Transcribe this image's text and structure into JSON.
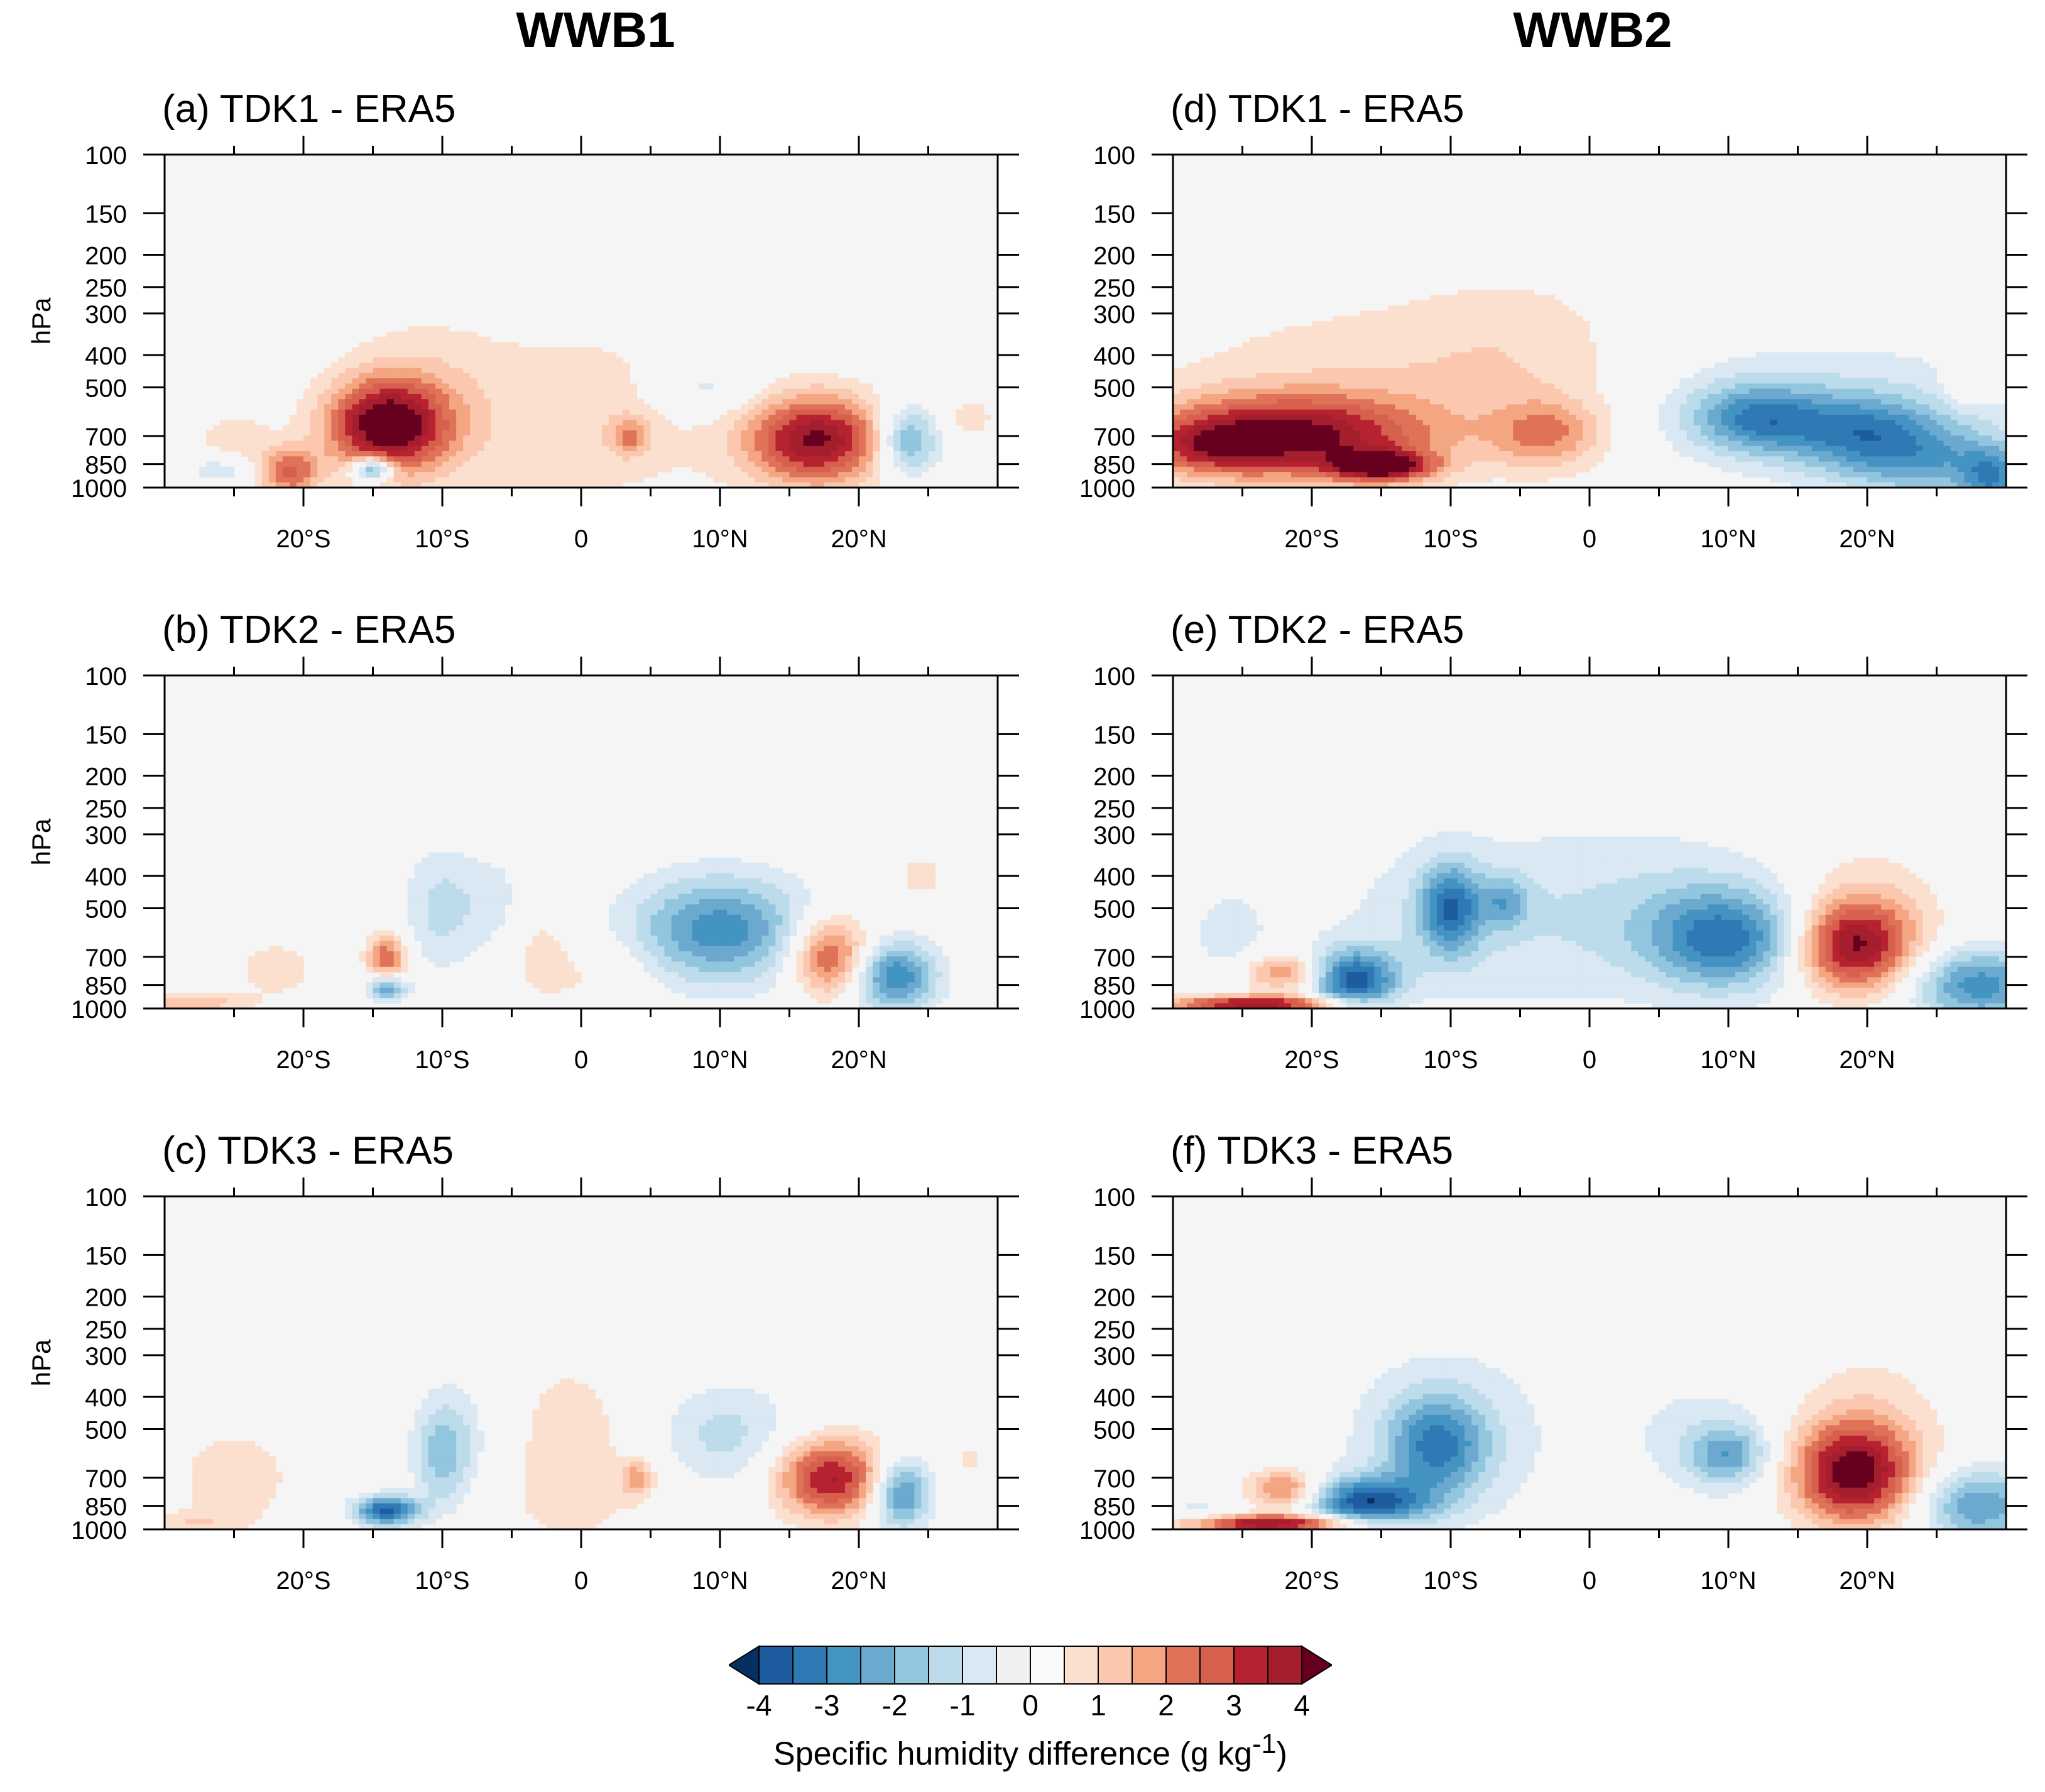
{
  "figure": {
    "columns": [
      "WWB1",
      "WWB2"
    ],
    "colorbar": {
      "label": "Specific humidity difference (g kg",
      "label_sup": "-1",
      "label_close": ")",
      "tick_labels": [
        "-4",
        "-3",
        "-2",
        "-1",
        "0",
        "1",
        "2",
        "3",
        "4"
      ],
      "levels": [
        -4,
        -3.5,
        -3,
        -2.5,
        -2,
        -1.5,
        -1,
        -0.5,
        0,
        0.5,
        1,
        1.5,
        2,
        2.5,
        3,
        3.5,
        4
      ],
      "colors": [
        "#053061",
        "#1c5c9f",
        "#2f79b5",
        "#4393c3",
        "#6ca9cf",
        "#92c5de",
        "#bcdbeb",
        "#d9e8f2",
        "#f0f0f0",
        "#fafafa",
        "#fbe0d0",
        "#fbc8af",
        "#f4a582",
        "#e07259",
        "#d6604d",
        "#b72230",
        "#a51e2d",
        "#67001f"
      ],
      "extend": "both"
    }
  },
  "chart_data": [
    {
      "type": "heatmap",
      "panel": "a",
      "column": "WWB1",
      "title": "(a) TDK1 - ERA5",
      "ylabel": "hPa",
      "xlabel": "",
      "yticks": [
        100,
        150,
        200,
        250,
        300,
        400,
        500,
        700,
        850,
        1000
      ],
      "xticks": [
        "20°S",
        "10°S",
        "0",
        "10°N",
        "20°N"
      ],
      "xticks_values": [
        -20,
        -10,
        0,
        10,
        20
      ],
      "xlim": [
        -30,
        30
      ],
      "ylim": [
        1000,
        100
      ],
      "features": [
        {
          "lat": -14,
          "p": 650,
          "v": 4.2,
          "sx": 3.0,
          "sy": 1.8
        },
        {
          "lat": -12,
          "p": 560,
          "v": 0.7,
          "sx": 4.0,
          "sy": 3.5
        },
        {
          "lat": -21,
          "p": 900,
          "v": 2.5,
          "sx": 1.5,
          "sy": 1.0
        },
        {
          "lat": -25,
          "p": 720,
          "v": 0.8,
          "sx": 2.0,
          "sy": 1.2
        },
        {
          "lat": -15,
          "p": 880,
          "v": -3.5,
          "sx": 1.0,
          "sy": 0.5
        },
        {
          "lat": -26,
          "p": 880,
          "v": -1.0,
          "sx": 1.6,
          "sy": 0.6
        },
        {
          "lat": 0,
          "p": 620,
          "v": 0.75,
          "sx": 9.0,
          "sy": 4.5
        },
        {
          "lat": 3.5,
          "p": 700,
          "v": 1.6,
          "sx": 1.0,
          "sy": 0.8
        },
        {
          "lat": 9,
          "p": 500,
          "v": -1.0,
          "sx": 2.6,
          "sy": 1.2
        },
        {
          "lat": 17,
          "p": 720,
          "v": 4.0,
          "sx": 3.5,
          "sy": 1.8
        },
        {
          "lat": 23.5,
          "p": 720,
          "v": -2.5,
          "sx": 1.6,
          "sy": 1.4
        },
        {
          "lat": 28,
          "p": 620,
          "v": 0.7,
          "sx": 1.5,
          "sy": 1.0
        }
      ]
    },
    {
      "type": "heatmap",
      "panel": "b",
      "column": "WWB1",
      "title": "(b) TDK2 - ERA5",
      "ylabel": "hPa",
      "xlabel": "",
      "yticks": [
        100,
        150,
        200,
        250,
        300,
        400,
        500,
        700,
        850,
        1000
      ],
      "xticks": [
        "20°S",
        "10°S",
        "0",
        "10°N",
        "20°N"
      ],
      "xticks_values": [
        -20,
        -10,
        0,
        10,
        20
      ],
      "xlim": [
        -30,
        30
      ],
      "ylim": [
        1000,
        100
      ],
      "features": [
        {
          "lat": -14,
          "p": 700,
          "v": 2.5,
          "sx": 1.0,
          "sy": 0.9
        },
        {
          "lat": -14,
          "p": 870,
          "v": -2.5,
          "sx": 1.0,
          "sy": 0.5
        },
        {
          "lat": -10,
          "p": 500,
          "v": -1.2,
          "sx": 2.0,
          "sy": 2.5
        },
        {
          "lat": -6,
          "p": 480,
          "v": -0.7,
          "sx": 1.5,
          "sy": 2.0
        },
        {
          "lat": -28,
          "p": 960,
          "v": 1.5,
          "sx": 2.5,
          "sy": 0.4
        },
        {
          "lat": -22,
          "p": 760,
          "v": 0.7,
          "sx": 2.5,
          "sy": 1.5
        },
        {
          "lat": -3,
          "p": 680,
          "v": 0.65,
          "sx": 2.0,
          "sy": 2.5
        },
        {
          "lat": 2,
          "p": 800,
          "v": 0.6,
          "sx": 2.5,
          "sy": 1.5
        },
        {
          "lat": 10,
          "p": 580,
          "v": -2.8,
          "sx": 4.5,
          "sy": 2.2
        },
        {
          "lat": 18,
          "p": 700,
          "v": 3.0,
          "sx": 2.0,
          "sy": 1.6
        },
        {
          "lat": 22.5,
          "p": 800,
          "v": -3.0,
          "sx": 2.2,
          "sy": 1.4
        },
        {
          "lat": 24.5,
          "p": 400,
          "v": 0.7,
          "sx": 1.5,
          "sy": 1.0
        }
      ]
    },
    {
      "type": "heatmap",
      "panel": "c",
      "column": "WWB1",
      "title": "(c) TDK3 - ERA5",
      "ylabel": "hPa",
      "xlabel": "",
      "yticks": [
        100,
        150,
        200,
        250,
        300,
        400,
        500,
        700,
        850,
        1000
      ],
      "xticks": [
        "20°S",
        "10°S",
        "0",
        "10°N",
        "20°N"
      ],
      "xticks_values": [
        -20,
        -10,
        0,
        10,
        20
      ],
      "xlim": [
        -30,
        30
      ],
      "ylim": [
        1000,
        100
      ],
      "features": [
        {
          "lat": -14,
          "p": 880,
          "v": -3.8,
          "sx": 1.6,
          "sy": 0.6
        },
        {
          "lat": -10,
          "p": 600,
          "v": -1.7,
          "sx": 1.5,
          "sy": 2.2
        },
        {
          "lat": -8,
          "p": 500,
          "v": -0.7,
          "sx": 2.5,
          "sy": 3.0
        },
        {
          "lat": -25,
          "p": 700,
          "v": 0.9,
          "sx": 3.0,
          "sy": 2.0
        },
        {
          "lat": -28,
          "p": 960,
          "v": 0.8,
          "sx": 2.5,
          "sy": 0.5
        },
        {
          "lat": -1,
          "p": 600,
          "v": 0.75,
          "sx": 6.0,
          "sy": 5.0
        },
        {
          "lat": 4,
          "p": 700,
          "v": 1.6,
          "sx": 0.8,
          "sy": 0.7
        },
        {
          "lat": 10,
          "p": 520,
          "v": -1.3,
          "sx": 3.8,
          "sy": 2.2
        },
        {
          "lat": 18,
          "p": 700,
          "v": 3.6,
          "sx": 2.8,
          "sy": 1.6
        },
        {
          "lat": 23,
          "p": 780,
          "v": -3.0,
          "sx": 1.5,
          "sy": 1.4
        },
        {
          "lat": 28,
          "p": 620,
          "v": 0.6,
          "sx": 1.2,
          "sy": 0.8
        }
      ]
    },
    {
      "type": "heatmap",
      "panel": "d",
      "column": "WWB2",
      "title": "(d) TDK1 - ERA5",
      "ylabel": "",
      "xlabel": "",
      "yticks": [
        100,
        150,
        200,
        250,
        300,
        400,
        500,
        700,
        850,
        1000
      ],
      "xticks": [
        "20°S",
        "10°S",
        "0",
        "10°N",
        "20°N"
      ],
      "xticks_values": [
        -20,
        -10,
        0,
        10,
        20
      ],
      "xlim": [
        -30,
        30
      ],
      "ylim": [
        1000,
        100
      ],
      "features": [
        {
          "lat": -22,
          "p": 700,
          "v": 3.8,
          "sx": 7.0,
          "sy": 1.6
        },
        {
          "lat": -27,
          "p": 760,
          "v": 1.5,
          "sx": 3.0,
          "sy": 1.0
        },
        {
          "lat": -15,
          "p": 860,
          "v": 4.0,
          "sx": 2.5,
          "sy": 0.6
        },
        {
          "lat": -18,
          "p": 520,
          "v": 0.8,
          "sx": 10.0,
          "sy": 4.0
        },
        {
          "lat": -5,
          "p": 400,
          "v": 0.7,
          "sx": 6.0,
          "sy": 3.5
        },
        {
          "lat": -3,
          "p": 690,
          "v": 1.8,
          "sx": 2.8,
          "sy": 1.4
        },
        {
          "lat": 12,
          "p": 620,
          "v": -2.5,
          "sx": 3.5,
          "sy": 1.4
        },
        {
          "lat": 20,
          "p": 680,
          "v": -2.2,
          "sx": 4.0,
          "sy": 1.5
        },
        {
          "lat": 25,
          "p": 850,
          "v": -1.7,
          "sx": 5.0,
          "sy": 1.5
        },
        {
          "lat": 29,
          "p": 950,
          "v": -2.0,
          "sx": 1.5,
          "sy": 1.2
        },
        {
          "lat": 18,
          "p": 560,
          "v": -0.8,
          "sx": 10.0,
          "sy": 3.0
        },
        {
          "lat": 27,
          "p": 500,
          "v": 0.8,
          "sx": 1.2,
          "sy": 0.8
        }
      ]
    },
    {
      "type": "heatmap",
      "panel": "e",
      "column": "WWB2",
      "title": "(e) TDK2 - ERA5",
      "ylabel": "",
      "xlabel": "",
      "yticks": [
        100,
        150,
        200,
        250,
        300,
        400,
        500,
        700,
        850,
        1000
      ],
      "xticks": [
        "20°S",
        "10°S",
        "0",
        "10°N",
        "20°N"
      ],
      "xticks_values": [
        -20,
        -10,
        0,
        10,
        20
      ],
      "xlim": [
        -30,
        30
      ],
      "ylim": [
        1000,
        100
      ],
      "features": [
        {
          "lat": -24,
          "p": 970,
          "v": 4.0,
          "sx": 4.5,
          "sy": 0.35
        },
        {
          "lat": -22,
          "p": 780,
          "v": 2.2,
          "sx": 2.0,
          "sy": 0.8
        },
        {
          "lat": -17,
          "p": 820,
          "v": -3.5,
          "sx": 2.2,
          "sy": 1.2
        },
        {
          "lat": -10,
          "p": 500,
          "v": -2.8,
          "sx": 1.6,
          "sy": 1.8
        },
        {
          "lat": -6,
          "p": 480,
          "v": -1.5,
          "sx": 1.2,
          "sy": 1.0
        },
        {
          "lat": -9,
          "p": 560,
          "v": -0.8,
          "sx": 8.0,
          "sy": 4.0
        },
        {
          "lat": 10,
          "p": 620,
          "v": -2.9,
          "sx": 4.0,
          "sy": 2.0
        },
        {
          "lat": 5,
          "p": 500,
          "v": -0.8,
          "sx": 7.0,
          "sy": 3.5
        },
        {
          "lat": 19,
          "p": 650,
          "v": 3.8,
          "sx": 3.0,
          "sy": 1.8
        },
        {
          "lat": 20,
          "p": 500,
          "v": 0.8,
          "sx": 4.0,
          "sy": 3.0
        },
        {
          "lat": 28,
          "p": 850,
          "v": -2.8,
          "sx": 3.5,
          "sy": 1.5
        },
        {
          "lat": -26,
          "p": 600,
          "v": -0.7,
          "sx": 2.0,
          "sy": 2.0
        }
      ]
    },
    {
      "type": "heatmap",
      "panel": "f",
      "column": "WWB2",
      "title": "(f) TDK3 - ERA5",
      "ylabel": "",
      "xlabel": "",
      "yticks": [
        100,
        150,
        200,
        250,
        300,
        400,
        500,
        700,
        850,
        1000
      ],
      "xticks": [
        "20°S",
        "10°S",
        "0",
        "10°N",
        "20°N"
      ],
      "xticks_values": [
        -20,
        -10,
        0,
        10,
        20
      ],
      "xlim": [
        -30,
        30
      ],
      "ylim": [
        1000,
        100
      ],
      "features": [
        {
          "lat": -23,
          "p": 960,
          "v": 4.2,
          "sx": 4.5,
          "sy": 0.35
        },
        {
          "lat": -22,
          "p": 760,
          "v": 2.4,
          "sx": 1.8,
          "sy": 0.8
        },
        {
          "lat": -16,
          "p": 830,
          "v": -3.6,
          "sx": 3.0,
          "sy": 1.0
        },
        {
          "lat": -11,
          "p": 560,
          "v": -2.6,
          "sx": 2.5,
          "sy": 2.0
        },
        {
          "lat": -10,
          "p": 520,
          "v": -0.8,
          "sx": 6.0,
          "sy": 4.0
        },
        {
          "lat": 10,
          "p": 600,
          "v": -2.0,
          "sx": 2.0,
          "sy": 1.2
        },
        {
          "lat": 8,
          "p": 520,
          "v": -0.7,
          "sx": 4.0,
          "sy": 2.5
        },
        {
          "lat": 19,
          "p": 680,
          "v": 4.0,
          "sx": 3.0,
          "sy": 2.0
        },
        {
          "lat": 20,
          "p": 500,
          "v": 0.8,
          "sx": 4.0,
          "sy": 3.5
        },
        {
          "lat": 28,
          "p": 850,
          "v": -2.5,
          "sx": 3.0,
          "sy": 1.5
        },
        {
          "lat": -28,
          "p": 900,
          "v": -0.8,
          "sx": 2.0,
          "sy": 0.6
        }
      ]
    }
  ]
}
